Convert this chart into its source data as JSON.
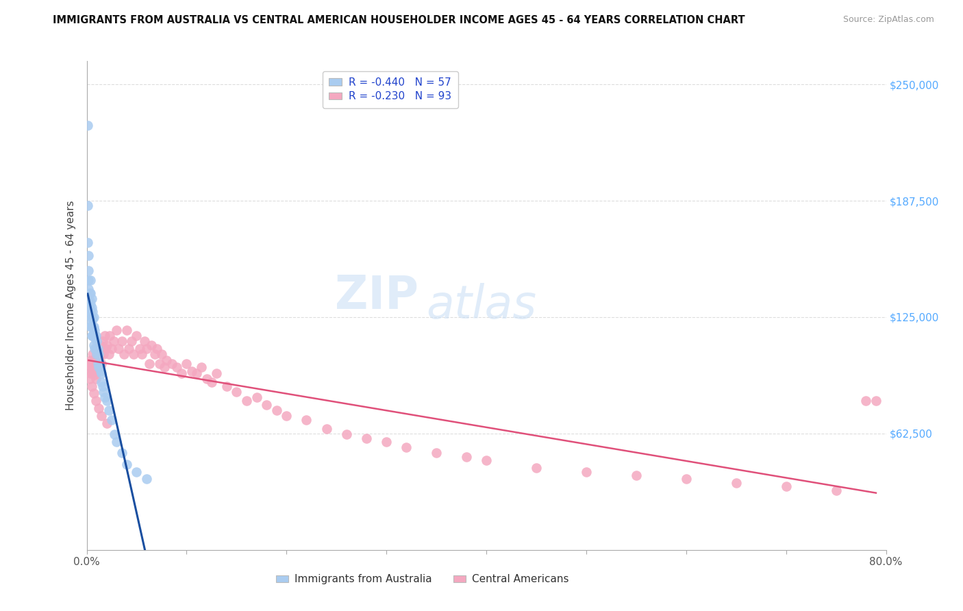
{
  "title": "IMMIGRANTS FROM AUSTRALIA VS CENTRAL AMERICAN HOUSEHOLDER INCOME AGES 45 - 64 YEARS CORRELATION CHART",
  "source": "Source: ZipAtlas.com",
  "ylabel": "Householder Income Ages 45 - 64 years",
  "xlim": [
    0.0,
    0.8
  ],
  "ylim": [
    0,
    262500
  ],
  "xticks": [
    0.0,
    0.1,
    0.2,
    0.3,
    0.4,
    0.5,
    0.6,
    0.7,
    0.8
  ],
  "xticklabels": [
    "0.0%",
    "",
    "",
    "",
    "",
    "",
    "",
    "",
    "80.0%"
  ],
  "ytick_values": [
    62500,
    125000,
    187500,
    250000
  ],
  "ytick_labels": [
    "$62,500",
    "$125,000",
    "$187,500",
    "$250,000"
  ],
  "legend_r_australia": "-0.440",
  "legend_n_australia": "57",
  "legend_r_central": "-0.230",
  "legend_n_central": "93",
  "legend_label_australia": "Immigrants from Australia",
  "legend_label_central": "Central Americans",
  "australia_color": "#aaccf0",
  "central_color": "#f4a8c0",
  "australia_line_color": "#1a4fa0",
  "central_line_color": "#e0507a",
  "australia_x": [
    0.001,
    0.001,
    0.001,
    0.002,
    0.002,
    0.002,
    0.002,
    0.003,
    0.003,
    0.003,
    0.003,
    0.003,
    0.004,
    0.004,
    0.004,
    0.004,
    0.004,
    0.005,
    0.005,
    0.005,
    0.005,
    0.005,
    0.006,
    0.006,
    0.006,
    0.006,
    0.007,
    0.007,
    0.007,
    0.007,
    0.008,
    0.008,
    0.008,
    0.009,
    0.009,
    0.01,
    0.01,
    0.011,
    0.011,
    0.012,
    0.012,
    0.013,
    0.014,
    0.015,
    0.015,
    0.016,
    0.017,
    0.018,
    0.02,
    0.022,
    0.025,
    0.028,
    0.03,
    0.035,
    0.04,
    0.05,
    0.06
  ],
  "australia_y": [
    228000,
    185000,
    165000,
    158000,
    150000,
    145000,
    140000,
    138000,
    134000,
    130000,
    126000,
    122000,
    145000,
    138000,
    132000,
    128000,
    120000,
    135000,
    130000,
    125000,
    120000,
    115000,
    128000,
    124000,
    120000,
    115000,
    125000,
    120000,
    115000,
    110000,
    118000,
    114000,
    108000,
    115000,
    108000,
    112000,
    105000,
    108000,
    100000,
    105000,
    98000,
    100000,
    96000,
    95000,
    90000,
    88000,
    85000,
    82000,
    80000,
    75000,
    70000,
    62000,
    58000,
    52000,
    46000,
    42000,
    38000
  ],
  "central_x": [
    0.002,
    0.003,
    0.004,
    0.004,
    0.005,
    0.005,
    0.006,
    0.006,
    0.007,
    0.007,
    0.008,
    0.008,
    0.009,
    0.009,
    0.01,
    0.01,
    0.011,
    0.012,
    0.013,
    0.014,
    0.015,
    0.016,
    0.017,
    0.018,
    0.019,
    0.02,
    0.022,
    0.023,
    0.025,
    0.027,
    0.03,
    0.032,
    0.035,
    0.037,
    0.04,
    0.042,
    0.045,
    0.047,
    0.05,
    0.053,
    0.055,
    0.058,
    0.06,
    0.063,
    0.065,
    0.068,
    0.07,
    0.073,
    0.075,
    0.078,
    0.08,
    0.085,
    0.09,
    0.095,
    0.1,
    0.105,
    0.11,
    0.115,
    0.12,
    0.125,
    0.13,
    0.14,
    0.15,
    0.16,
    0.17,
    0.18,
    0.19,
    0.2,
    0.22,
    0.24,
    0.26,
    0.28,
    0.3,
    0.32,
    0.35,
    0.38,
    0.4,
    0.45,
    0.5,
    0.55,
    0.6,
    0.65,
    0.7,
    0.75,
    0.78,
    0.79,
    0.003,
    0.005,
    0.007,
    0.009,
    0.012,
    0.015,
    0.02
  ],
  "central_y": [
    100000,
    98000,
    102000,
    95000,
    100000,
    96000,
    105000,
    98000,
    102000,
    96000,
    100000,
    94000,
    98000,
    92000,
    105000,
    96000,
    100000,
    98000,
    110000,
    105000,
    100000,
    112000,
    105000,
    115000,
    108000,
    110000,
    105000,
    115000,
    108000,
    112000,
    118000,
    108000,
    112000,
    105000,
    118000,
    108000,
    112000,
    105000,
    115000,
    108000,
    105000,
    112000,
    108000,
    100000,
    110000,
    105000,
    108000,
    100000,
    105000,
    98000,
    102000,
    100000,
    98000,
    95000,
    100000,
    96000,
    95000,
    98000,
    92000,
    90000,
    95000,
    88000,
    85000,
    80000,
    82000,
    78000,
    75000,
    72000,
    70000,
    65000,
    62000,
    60000,
    58000,
    55000,
    52000,
    50000,
    48000,
    44000,
    42000,
    40000,
    38000,
    36000,
    34000,
    32000,
    80000,
    80000,
    92000,
    88000,
    84000,
    80000,
    76000,
    72000,
    68000
  ]
}
